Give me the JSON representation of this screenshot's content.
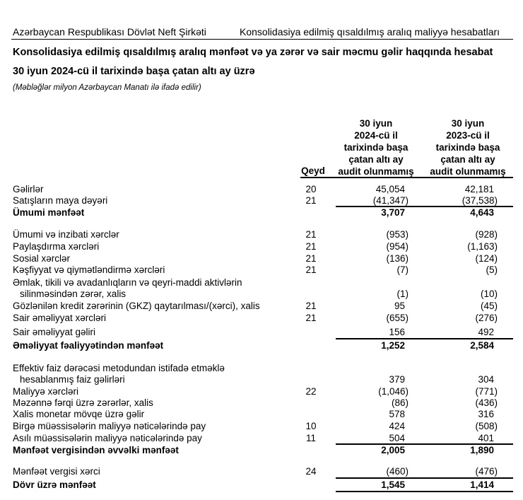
{
  "header": {
    "company": "Azərbaycan Respublikası Dövlət Neft Şirkəti",
    "report_set": "Konsolidasiya edilmiş qısaldılmış aralıq maliyyə hesabatları"
  },
  "title": "Konsolidasiya edilmiş qısaldılmış aralıq mənfəət və ya zərər və sair məcmu gəlir haqqında hesabat",
  "subtitle": "30 iyun 2024-cü il tarixində başa çatan altı ay üzrə",
  "note": "(Məbləğlər milyon Azərbaycan Manatı ilə ifadə edilir)",
  "columns": {
    "qeyd": "Qeyd",
    "col1": [
      "30 iyun",
      "2024-cü il",
      "tarixində başa",
      "çatan altı ay",
      "audit olunmamış"
    ],
    "col2": [
      "30 iyun",
      "2023-cü il",
      "tarixində başa",
      "çatan altı ay",
      "audit olunmamış"
    ]
  },
  "rows": [
    {
      "label": "Gəlirlər",
      "qeyd": "20",
      "v1": "45,054",
      "v2": "42,181"
    },
    {
      "label": "Satışların maya dəyəri",
      "qeyd": "21",
      "v1": "(41,347)",
      "v2": "(37,538)"
    },
    {
      "label": "Ümumi mənfəət",
      "qeyd": "",
      "v1": "3,707",
      "v2": "4,643",
      "bold": true
    },
    {
      "label": "Ümumi və inzibati xərclər",
      "qeyd": "21",
      "v1": "(953)",
      "v2": "(928)"
    },
    {
      "label": "Paylaşdırma xərcləri",
      "qeyd": "21",
      "v1": "(954)",
      "v2": "(1,163)"
    },
    {
      "label": "Sosial xərclər",
      "qeyd": "21",
      "v1": "(136)",
      "v2": "(124)"
    },
    {
      "label": "Kəşfiyyat və qiymətləndirmə xərcləri",
      "qeyd": "21",
      "v1": "(7)",
      "v2": "(5)"
    },
    {
      "label": "Əmlak, tikili və avadanlıqların və qeyri-maddi aktivlərin",
      "qeyd": "",
      "v1": "",
      "v2": ""
    },
    {
      "label": "silinməsindən zərər, xalis",
      "qeyd": "",
      "v1": "(1)",
      "v2": "(10)",
      "indent": true
    },
    {
      "label": "Gözlənilən kredit zərərinin (GKZ) qaytarılması/(xərci), xalis",
      "qeyd": "21",
      "v1": "95",
      "v2": "(45)"
    },
    {
      "label": "Sair əməliyyat xərcləri",
      "qeyd": "21",
      "v1": "(655)",
      "v2": "(276)"
    },
    {
      "label": "Sair əməliyyat gəliri",
      "qeyd": "",
      "v1": "156",
      "v2": "492"
    },
    {
      "label": "Əməliyyat fəaliyyətindən mənfəət",
      "qeyd": "",
      "v1": "1,252",
      "v2": "2,584",
      "bold": true
    },
    {
      "label": "Effektiv faiz dərəcəsi metodundan istifadə etməklə",
      "qeyd": "",
      "v1": "",
      "v2": ""
    },
    {
      "label": "hesablanmış faiz gəlirləri",
      "qeyd": "",
      "v1": "379",
      "v2": "304",
      "indent": true
    },
    {
      "label": "Maliyyə xərcləri",
      "qeyd": "22",
      "v1": "(1,046)",
      "v2": "(771)"
    },
    {
      "label": "Məzənnə fərqi üzrə zərərlər, xalis",
      "qeyd": "",
      "v1": "(86)",
      "v2": "(436)"
    },
    {
      "label": "Xalis monetar mövqe üzrə gəlir",
      "qeyd": "",
      "v1": "578",
      "v2": "316"
    },
    {
      "label": "Birgə müəssisələrin maliyyə nəticələrində pay",
      "qeyd": "10",
      "v1": "424",
      "v2": "(508)"
    },
    {
      "label": "Asılı müəssisələrin maliyyə nəticələrində pay",
      "qeyd": "11",
      "v1": "504",
      "v2": "401"
    },
    {
      "label": "Mənfəət vergisindən əvvəlki mənfəət",
      "qeyd": "",
      "v1": "2,005",
      "v2": "1,890",
      "bold": true
    },
    {
      "label": "Mənfəət vergisi xərci",
      "qeyd": "24",
      "v1": "(460)",
      "v2": "(476)"
    },
    {
      "label": "Dövr üzrə mənfəət",
      "qeyd": "",
      "v1": "1,545",
      "v2": "1,414",
      "bold": true
    }
  ]
}
